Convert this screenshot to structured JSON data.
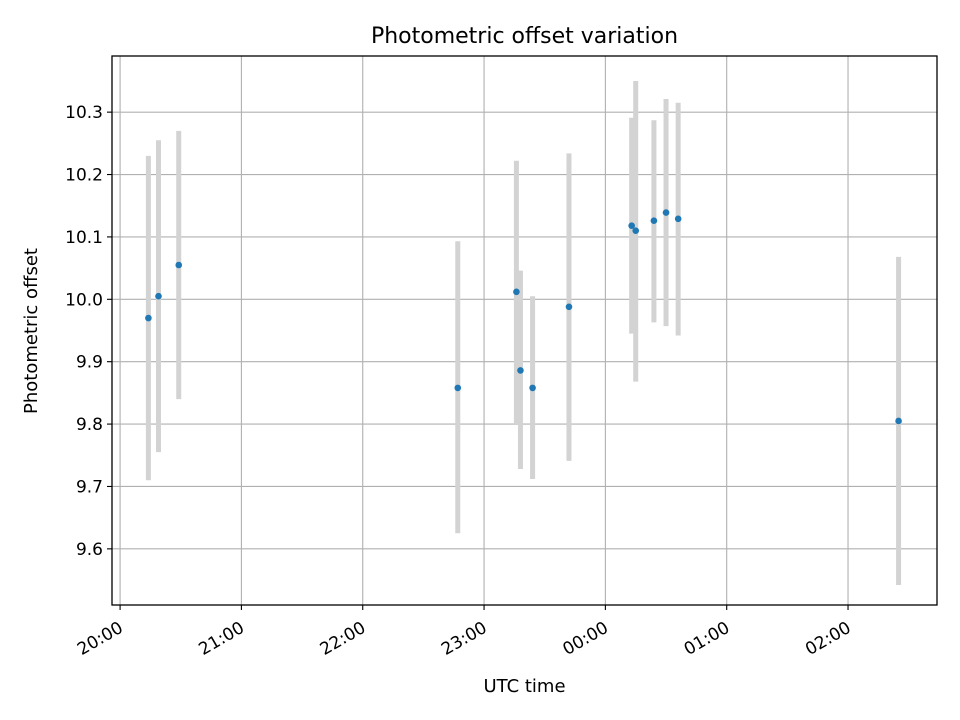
{
  "chart_data": {
    "type": "scatter",
    "title": "Photometric offset variation",
    "xlabel": "UTC time",
    "ylabel": "Photometric offset",
    "x_ticks": [
      "20:00",
      "21:00",
      "22:00",
      "23:00",
      "00:00",
      "01:00",
      "02:00"
    ],
    "y_ticks": [
      "9.6",
      "9.7",
      "9.8",
      "9.9",
      "10.0",
      "10.1",
      "10.2",
      "10.3"
    ],
    "xlim": [
      "19:56",
      "02:44"
    ],
    "ylim": [
      9.51,
      10.39
    ],
    "grid": true,
    "marker_color": "#1f77b4",
    "errorbar_color": "#d3d3d3",
    "points": [
      {
        "x": "20:14",
        "y": 9.97,
        "err_low": 9.71,
        "err_high": 10.23
      },
      {
        "x": "20:19",
        "y": 10.005,
        "err_low": 9.755,
        "err_high": 10.255
      },
      {
        "x": "20:29",
        "y": 10.055,
        "err_low": 9.84,
        "err_high": 10.27
      },
      {
        "x": "22:47",
        "y": 9.858,
        "err_low": 9.625,
        "err_high": 10.093
      },
      {
        "x": "23:16",
        "y": 10.012,
        "err_low": 9.8,
        "err_high": 10.222
      },
      {
        "x": "23:18",
        "y": 9.886,
        "err_low": 9.728,
        "err_high": 10.046
      },
      {
        "x": "23:24",
        "y": 9.858,
        "err_low": 9.712,
        "err_high": 10.005
      },
      {
        "x": "23:42",
        "y": 9.988,
        "err_low": 9.741,
        "err_high": 10.234
      },
      {
        "x": "00:13",
        "y": 10.118,
        "err_low": 9.945,
        "err_high": 10.291
      },
      {
        "x": "00:15",
        "y": 10.11,
        "err_low": 9.868,
        "err_high": 10.35
      },
      {
        "x": "00:24",
        "y": 10.126,
        "err_low": 9.963,
        "err_high": 10.287
      },
      {
        "x": "00:30",
        "y": 10.139,
        "err_low": 9.957,
        "err_high": 10.321
      },
      {
        "x": "00:36",
        "y": 10.129,
        "err_low": 9.942,
        "err_high": 10.315
      },
      {
        "x": "02:25",
        "y": 9.805,
        "err_low": 9.542,
        "err_high": 10.068
      }
    ]
  }
}
